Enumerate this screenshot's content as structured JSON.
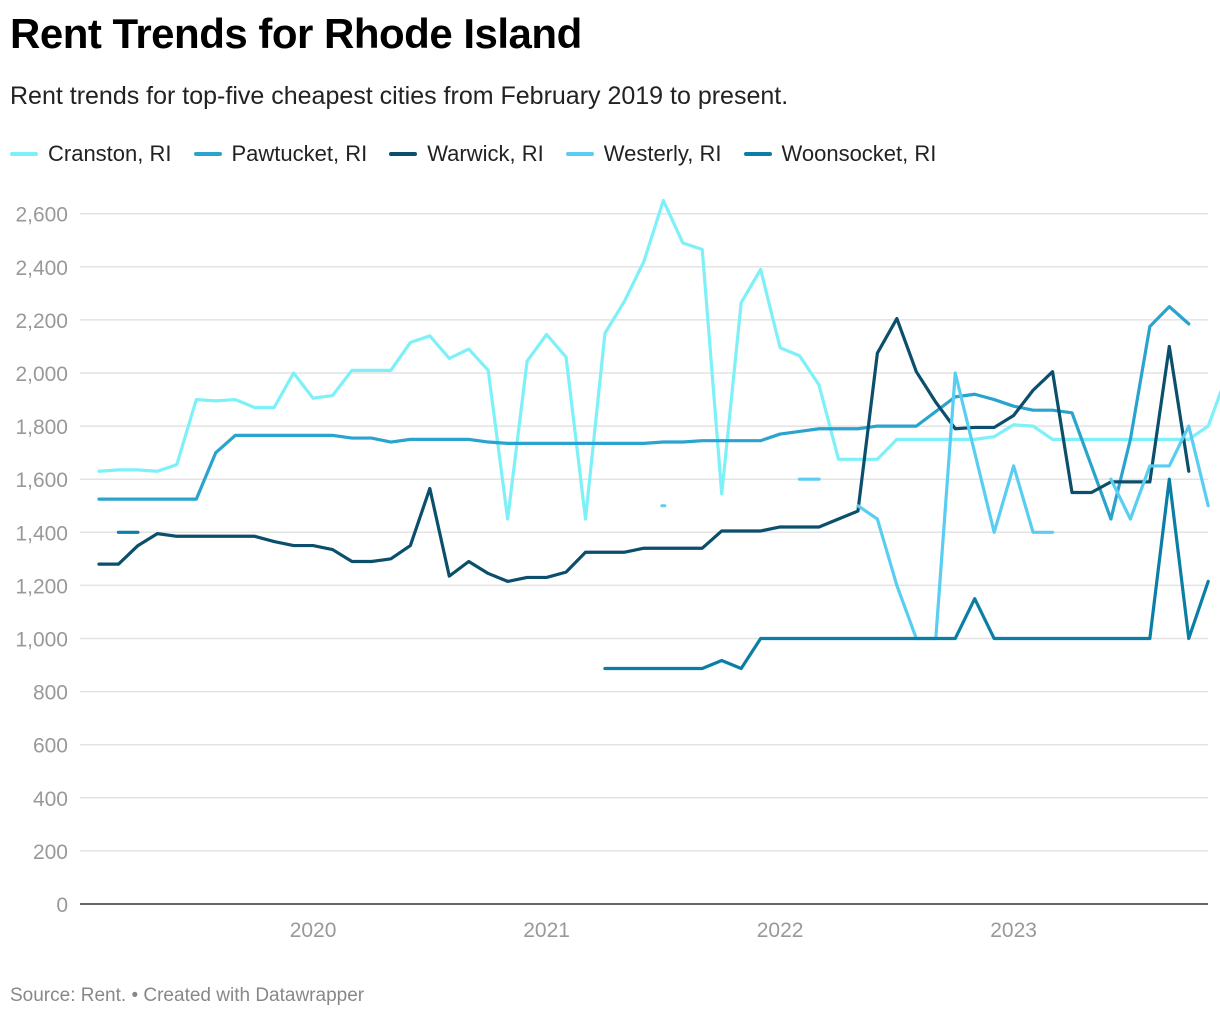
{
  "header": {
    "title": "Rent Trends for Rhode Island",
    "subtitle": "Rent trends for top-five cheapest cities from February 2019 to present."
  },
  "footer": {
    "source": "Source: Rent. • Created with Datawrapper"
  },
  "chart_data": {
    "type": "line",
    "title": "Rent Trends for Rhode Island",
    "subtitle": "Rent trends for top-five cheapest cities from February 2019 to present.",
    "xlabel": "",
    "ylabel": "",
    "x_start": "2019-02",
    "x_end": "2023-10",
    "x_ticks": [
      "2020",
      "2021",
      "2022",
      "2023"
    ],
    "y_ticks": [
      0,
      200,
      400,
      600,
      800,
      1000,
      1200,
      1400,
      1600,
      1800,
      2000,
      2200,
      2400,
      2600
    ],
    "ylim": [
      0,
      2700
    ],
    "grid": true,
    "legend_position": "top",
    "series": [
      {
        "name": "Cranston, RI",
        "color": "#7ef0f7",
        "values": [
          1630,
          1635,
          1635,
          1630,
          1655,
          1900,
          1895,
          1900,
          1870,
          1870,
          2000,
          1905,
          1915,
          2010,
          2010,
          2010,
          2115,
          2140,
          2055,
          2090,
          2010,
          1450,
          2045,
          2145,
          2060,
          1450,
          2150,
          2270,
          2420,
          2650,
          2490,
          2465,
          1545,
          2265,
          2390,
          2095,
          2065,
          1955,
          1675,
          1675,
          1675,
          1750,
          1750,
          1750,
          1750,
          1750,
          1760,
          1805,
          1800,
          1750,
          1750,
          1750,
          1750,
          1750,
          1750,
          1750,
          1750,
          1800,
          2000
        ]
      },
      {
        "name": "Pawtucket, RI",
        "color": "#2aa4cf",
        "values": [
          1525,
          1525,
          1525,
          1525,
          1525,
          1525,
          1700,
          1765,
          1765,
          1765,
          1765,
          1765,
          1765,
          1755,
          1755,
          1740,
          1750,
          1750,
          1750,
          1750,
          1740,
          1735,
          1735,
          1735,
          1735,
          1735,
          1735,
          1735,
          1735,
          1740,
          1740,
          1745,
          1745,
          1745,
          1745,
          1770,
          1780,
          1790,
          1790,
          1790,
          1800,
          1800,
          1800,
          1855,
          1910,
          1920,
          1900,
          1875,
          1860,
          1860,
          1850,
          1650,
          1450,
          1750,
          2175,
          2250,
          2185
        ]
      },
      {
        "name": "Warwick, RI",
        "color": "#0b4f6c",
        "values": [
          1280,
          1280,
          1350,
          1395,
          1385,
          1385,
          1385,
          1385,
          1385,
          1365,
          1350,
          1350,
          1335,
          1290,
          1290,
          1300,
          1350,
          1565,
          1235,
          1290,
          1245,
          1215,
          1230,
          1230,
          1250,
          1325,
          1325,
          1325,
          1340,
          1340,
          1340,
          1340,
          1405,
          1405,
          1405,
          1420,
          1420,
          1420,
          1450,
          1480,
          2075,
          2205,
          2005,
          1890,
          1790,
          1795,
          1795,
          1840,
          1935,
          2005,
          1550,
          1550,
          1590,
          1590,
          1590,
          2100,
          1630
        ]
      },
      {
        "name": "Westerly, RI",
        "color": "#59cdf2",
        "values": [
          null,
          null,
          null,
          null,
          null,
          null,
          null,
          null,
          null,
          null,
          null,
          null,
          null,
          null,
          null,
          null,
          null,
          null,
          null,
          null,
          null,
          null,
          null,
          null,
          null,
          null,
          null,
          null,
          null,
          1500,
          null,
          null,
          null,
          null,
          null,
          null,
          1600,
          1600,
          null,
          1500,
          1450,
          1200,
          1000,
          1000,
          2000,
          1700,
          1400,
          1650,
          1400,
          1400,
          null,
          null,
          1600,
          1450,
          1650,
          1650,
          1800,
          1500
        ]
      },
      {
        "name": "Woonsocket, RI",
        "color": "#0a7ea4",
        "values": [
          null,
          1400,
          1400,
          null,
          null,
          null,
          null,
          null,
          null,
          null,
          null,
          null,
          null,
          null,
          null,
          null,
          null,
          null,
          null,
          null,
          null,
          null,
          null,
          null,
          null,
          null,
          887,
          887,
          887,
          887,
          887,
          887,
          917,
          887,
          1000,
          1000,
          1000,
          1000,
          1000,
          1000,
          1000,
          1000,
          1000,
          1000,
          1000,
          1150,
          1000,
          1000,
          1000,
          1000,
          1000,
          1000,
          1000,
          1000,
          1000,
          1600,
          1000,
          1215
        ]
      }
    ]
  }
}
